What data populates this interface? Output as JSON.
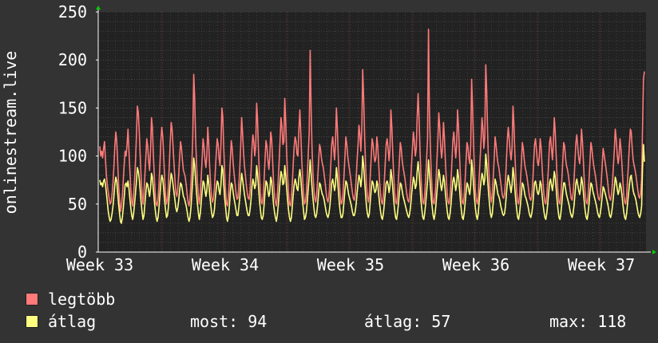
{
  "chart_data": {
    "type": "line",
    "ylabel": "onlinestream.live",
    "ylim": [
      0,
      250
    ],
    "yticks": [
      "0",
      "50",
      "100",
      "150",
      "200",
      "250"
    ],
    "xticks": [
      "Week 33",
      "Week 34",
      "Week 35",
      "Week 36",
      "Week 37"
    ],
    "grid": true,
    "legend_position": "bottom",
    "colors": {
      "background": "#333333",
      "plot_area": "#222222",
      "grid": "#5a5a5a",
      "week_grid": "#8a3a3a",
      "axis": "#ffffff",
      "arrow": "#00cc00"
    },
    "series": [
      {
        "name": "legtöbb",
        "color": "#ff7a7a",
        "values": [
          110,
          100,
          105,
          98,
          108,
          115,
          96,
          80,
          70,
          62,
          55,
          50,
          52,
          60,
          72,
          88,
          110,
          125,
          115,
          95,
          70,
          55,
          42,
          48,
          58,
          75,
          92,
          105,
          100,
          112,
          128,
          105,
          85,
          65,
          52,
          48,
          60,
          75,
          95,
          122,
          152,
          145,
          125,
          100,
          78,
          60,
          50,
          62,
          80,
          98,
          118,
          110,
          95,
          85,
          105,
          140,
          130,
          102,
          80,
          60,
          50,
          48,
          55,
          70,
          92,
          115,
          130,
          120,
          100,
          78,
          60,
          50,
          55,
          68,
          90,
          115,
          135,
          128,
          110,
          92,
          75,
          62,
          58,
          66,
          80,
          98,
          115,
          108,
          95,
          85,
          82,
          78,
          70,
          60,
          52,
          48,
          55,
          70,
          90,
          120,
          185,
          160,
          120,
          92,
          72,
          58,
          50,
          60,
          78,
          98,
          118,
          110,
          96,
          88,
          100,
          130,
          112,
          88,
          70,
          58,
          52,
          56,
          66,
          84,
          102,
          118,
          112,
          98,
          90,
          112,
          150,
          140,
          108,
          82,
          62,
          50,
          48,
          58,
          74,
          95,
          116,
          108,
          92,
          82,
          72,
          62,
          55,
          56,
          68,
          86,
          110,
          140,
          125,
          105,
          90,
          80,
          70,
          62,
          56,
          55,
          64,
          82,
          108,
          122,
          115,
          100,
          110,
          155,
          138,
          105,
          80,
          62,
          52,
          50,
          58,
          76,
          98,
          116,
          110,
          96,
          86,
          98,
          125,
          118,
          95,
          74,
          60,
          52,
          48,
          58,
          74,
          95,
          118,
          140,
          130,
          112,
          115,
          160,
          135,
          102,
          78,
          62,
          50,
          48,
          56,
          72,
          92,
          110,
          120,
          115,
          102,
          100,
          128,
          148,
          125,
          98,
          76,
          60,
          50,
          52,
          62,
          80,
          102,
          124,
          210,
          150,
          110,
          82,
          65,
          55,
          52,
          60,
          76,
          95,
          112,
          108,
          98,
          92,
          88,
          80,
          72,
          62,
          55,
          52,
          58,
          72,
          92,
          112,
          120,
          108,
          96,
          112,
          150,
          128,
          98,
          75,
          60,
          50,
          52,
          60,
          78,
          98,
          120,
          112,
          100,
          92,
          85,
          78,
          70,
          62,
          56,
          54,
          60,
          76,
          96,
          112,
          132,
          122,
          105,
          130,
          190,
          160,
          120,
          90,
          70,
          58,
          52,
          60,
          78,
          98,
          118,
          112,
          100,
          94,
          98,
          120,
          110,
          92,
          72,
          60,
          52,
          50,
          58,
          74,
          94,
          112,
          118,
          108,
          95,
          106,
          148,
          130,
          102,
          80,
          62,
          52,
          50,
          58,
          74,
          94,
          114,
          108,
          96,
          88,
          82,
          76,
          68,
          60,
          54,
          52,
          58,
          72,
          92,
          110,
          125,
          115,
          100,
          108,
          140,
          165,
          138,
          105,
          80,
          62,
          52,
          50,
          58,
          76,
          96,
          118,
          232,
          150,
          110,
          82,
          62,
          52,
          50,
          58,
          74,
          94,
          116,
          145,
          130,
          110,
          98,
          108,
          135,
          120,
          96,
          76,
          60,
          52,
          50,
          58,
          74,
          94,
          116,
          125,
          112,
          98,
          110,
          148,
          130,
          102,
          80,
          62,
          52,
          50,
          58,
          74,
          94,
          114,
          110,
          98,
          92,
          112,
          180,
          150,
          112,
          84,
          64,
          54,
          50,
          58,
          76,
          96,
          116,
          140,
          128,
          108,
          120,
          195,
          168,
          125,
          92,
          70,
          58,
          52,
          60,
          78,
          98,
          120,
          112,
          100,
          92,
          88,
          80,
          72,
          64,
          58,
          56,
          60,
          74,
          94,
          116,
          130,
          118,
          104,
          96,
          108,
          152,
          132,
          104,
          80,
          62,
          52,
          50,
          58,
          74,
          94,
          114,
          108,
          96,
          88,
          84,
          78,
          70,
          62,
          56,
          54,
          58,
          72,
          92,
          112,
          118,
          106,
          94,
          90,
          98,
          118,
          108,
          90,
          72,
          60,
          52,
          50,
          58,
          74,
          94,
          114,
          120,
          108,
          96,
          112,
          140,
          125,
          100,
          78,
          62,
          52,
          50,
          58,
          74,
          94,
          114,
          110,
          98,
          90,
          86,
          80,
          72,
          64,
          56,
          54,
          60,
          74,
          94,
          114,
          122,
          110,
          98,
          92,
          102,
          128,
          115,
          94,
          74,
          60,
          52,
          50,
          58,
          74,
          94,
          114,
          108,
          98,
          90,
          84,
          78,
          70,
          62,
          56,
          54,
          58,
          72,
          90,
          108,
          102,
          95,
          88,
          80,
          72,
          62,
          56,
          54,
          60,
          72,
          90,
          108,
          128,
          118,
          102,
          92,
          100,
          118,
          108,
          92,
          74,
          60,
          52,
          50,
          58,
          74,
          92,
          112,
          128,
          125,
          108,
          96,
          90,
          86,
          80,
          72,
          64,
          58,
          56,
          62,
          76,
          128,
          180,
          188
        ]
      },
      {
        "name": "átlag",
        "color": "#ffff80",
        "values": [
          75,
          70,
          72,
          68,
          74,
          76,
          70,
          62,
          52,
          42,
          36,
          32,
          34,
          40,
          48,
          58,
          70,
          78,
          74,
          62,
          50,
          40,
          32,
          30,
          36,
          46,
          58,
          70,
          72,
          68,
          74,
          66,
          56,
          46,
          38,
          34,
          40,
          50,
          62,
          74,
          88,
          84,
          76,
          64,
          52,
          42,
          34,
          38,
          50,
          62,
          72,
          70,
          64,
          58,
          66,
          82,
          78,
          66,
          54,
          44,
          36,
          32,
          36,
          46,
          60,
          72,
          80,
          76,
          66,
          54,
          44,
          36,
          38,
          46,
          60,
          72,
          82,
          78,
          70,
          62,
          54,
          46,
          42,
          46,
          54,
          64,
          72,
          70,
          64,
          58,
          56,
          52,
          48,
          42,
          36,
          32,
          36,
          46,
          60,
          76,
          98,
          90,
          76,
          62,
          50,
          40,
          34,
          40,
          52,
          64,
          74,
          72,
          64,
          58,
          64,
          80,
          72,
          60,
          50,
          42,
          36,
          38,
          44,
          56,
          66,
          74,
          72,
          64,
          60,
          70,
          90,
          86,
          70,
          56,
          46,
          36,
          32,
          38,
          48,
          62,
          72,
          70,
          62,
          56,
          50,
          44,
          38,
          38,
          46,
          56,
          70,
          82,
          76,
          68,
          60,
          54,
          48,
          42,
          38,
          38,
          44,
          54,
          68,
          76,
          72,
          66,
          70,
          90,
          82,
          68,
          54,
          44,
          36,
          34,
          38,
          50,
          64,
          74,
          72,
          64,
          58,
          62,
          78,
          74,
          62,
          50,
          42,
          36,
          32,
          38,
          48,
          62,
          74,
          84,
          80,
          70,
          72,
          90,
          80,
          66,
          54,
          44,
          36,
          32,
          36,
          48,
          60,
          70,
          76,
          72,
          66,
          64,
          78,
          86,
          78,
          64,
          52,
          42,
          34,
          36,
          42,
          54,
          66,
          78,
          96,
          82,
          68,
          56,
          46,
          38,
          36,
          40,
          50,
          62,
          72,
          70,
          64,
          60,
          58,
          54,
          48,
          42,
          38,
          36,
          40,
          48,
          60,
          72,
          76,
          70,
          64,
          70,
          88,
          78,
          64,
          52,
          42,
          36,
          36,
          40,
          52,
          64,
          74,
          72,
          66,
          60,
          56,
          52,
          48,
          42,
          38,
          38,
          42,
          50,
          62,
          72,
          80,
          76,
          68,
          78,
          100,
          90,
          74,
          60,
          48,
          40,
          36,
          40,
          52,
          64,
          74,
          72,
          66,
          62,
          64,
          74,
          70,
          60,
          50,
          42,
          36,
          34,
          40,
          50,
          62,
          72,
          74,
          70,
          62,
          68,
          86,
          78,
          66,
          54,
          44,
          36,
          34,
          40,
          50,
          62,
          72,
          70,
          64,
          58,
          54,
          50,
          46,
          42,
          38,
          36,
          40,
          48,
          60,
          70,
          78,
          74,
          66,
          70,
          84,
          94,
          82,
          68,
          54,
          44,
          36,
          34,
          40,
          50,
          62,
          74,
          96,
          84,
          70,
          56,
          46,
          38,
          34,
          40,
          50,
          62,
          74,
          86,
          80,
          70,
          64,
          70,
          80,
          74,
          62,
          52,
          42,
          36,
          34,
          40,
          50,
          62,
          74,
          78,
          72,
          64,
          70,
          86,
          78,
          66,
          54,
          44,
          36,
          34,
          40,
          50,
          62,
          72,
          70,
          64,
          60,
          70,
          96,
          86,
          70,
          56,
          46,
          38,
          34,
          40,
          52,
          64,
          74,
          82,
          78,
          70,
          76,
          102,
          92,
          76,
          62,
          50,
          40,
          36,
          40,
          52,
          64,
          76,
          72,
          66,
          60,
          58,
          54,
          48,
          44,
          40,
          38,
          40,
          48,
          60,
          72,
          80,
          74,
          68,
          62,
          70,
          88,
          80,
          66,
          54,
          44,
          36,
          34,
          40,
          50,
          62,
          72,
          70,
          64,
          58,
          56,
          52,
          48,
          42,
          38,
          36,
          40,
          48,
          60,
          72,
          74,
          68,
          62,
          60,
          64,
          74,
          70,
          60,
          50,
          42,
          36,
          34,
          40,
          50,
          62,
          72,
          76,
          70,
          64,
          72,
          84,
          78,
          66,
          54,
          44,
          36,
          34,
          40,
          50,
          62,
          72,
          72,
          66,
          60,
          56,
          52,
          48,
          42,
          38,
          36,
          40,
          48,
          60,
          72,
          76,
          70,
          64,
          60,
          66,
          78,
          72,
          62,
          52,
          42,
          36,
          34,
          40,
          50,
          62,
          72,
          70,
          64,
          60,
          56,
          52,
          48,
          42,
          38,
          36,
          40,
          48,
          58,
          68,
          66,
          62,
          58,
          54,
          50,
          44,
          38,
          36,
          40,
          48,
          58,
          68,
          78,
          74,
          66,
          60,
          64,
          72,
          68,
          60,
          50,
          42,
          36,
          34,
          40,
          50,
          60,
          70,
          78,
          80,
          72,
          64,
          60,
          58,
          54,
          48,
          42,
          38,
          36,
          40,
          48,
          86,
          112,
          94
        ]
      }
    ]
  },
  "legend": {
    "items": [
      {
        "label": "legtöbb",
        "color": "#ff7a7a"
      },
      {
        "label": "átlag",
        "color": "#ffff80"
      }
    ],
    "stats": {
      "most": "most: 94",
      "atlag": "átlag: 57",
      "max": "max: 118"
    }
  }
}
